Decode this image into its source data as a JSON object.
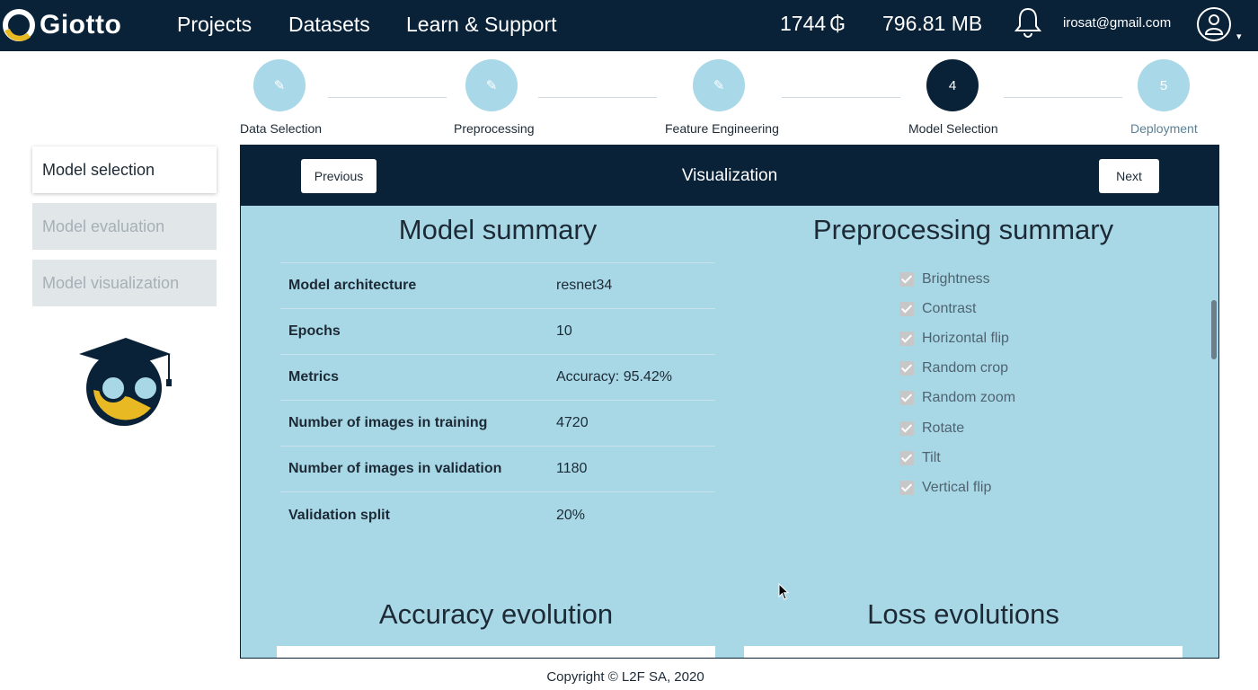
{
  "app": {
    "name": "Giotto",
    "logo_icon": "giotto-ring-icon"
  },
  "nav": {
    "items": [
      {
        "label": "Projects"
      },
      {
        "label": "Datasets"
      },
      {
        "label": "Learn & Support"
      }
    ]
  },
  "account": {
    "credits": "1744",
    "credits_icon": "giotto-coin-icon",
    "credits_symbol": "₲",
    "storage": "796.81 MB",
    "email": "irosat@gmail.com",
    "caret": "▾"
  },
  "stepper": {
    "steps": [
      {
        "label": "Data Selection",
        "marker": "✎",
        "state": "done"
      },
      {
        "label": "Preprocessing",
        "marker": "✎",
        "state": "done"
      },
      {
        "label": "Feature Engineering",
        "marker": "✎",
        "state": "done"
      },
      {
        "label": "Model Selection",
        "marker": "4",
        "state": "active"
      },
      {
        "label": "Deployment",
        "marker": "5",
        "state": "pending"
      }
    ]
  },
  "sidebar": {
    "items": [
      {
        "label": "Model selection",
        "state": "active"
      },
      {
        "label": "Model evaluation",
        "state": "disabled"
      },
      {
        "label": "Model visualization",
        "state": "disabled"
      }
    ],
    "mascot_icon": "graduate-owl-icon"
  },
  "panel": {
    "previous_label": "Previous",
    "title": "Visualization",
    "next_label": "Next"
  },
  "model_summary": {
    "title": "Model summary",
    "rows": [
      {
        "key": "Model architecture",
        "value": "resnet34"
      },
      {
        "key": "Epochs",
        "value": "10"
      },
      {
        "key": "Metrics",
        "value": "Accuracy: 95.42%"
      },
      {
        "key": "Number of images in training",
        "value": "4720"
      },
      {
        "key": "Number of images in validation",
        "value": "1180"
      },
      {
        "key": "Validation split",
        "value": "20%"
      }
    ]
  },
  "preprocessing_summary": {
    "title": "Preprocessing summary",
    "items": [
      {
        "label": "Brightness",
        "checked": true
      },
      {
        "label": "Contrast",
        "checked": true
      },
      {
        "label": "Horizontal flip",
        "checked": true
      },
      {
        "label": "Random crop",
        "checked": true
      },
      {
        "label": "Random zoom",
        "checked": true
      },
      {
        "label": "Rotate",
        "checked": true
      },
      {
        "label": "Tilt",
        "checked": true
      },
      {
        "label": "Vertical flip",
        "checked": true
      }
    ]
  },
  "charts": {
    "accuracy_title": "Accuracy evolution",
    "loss_title": "Loss evolutions"
  },
  "footer": {
    "copyright": "Copyright © L2F SA, 2020"
  },
  "colors": {
    "navy": "#0a2238",
    "panel_blue": "#a8d8e6",
    "step_done": "#a9d8e8",
    "accent_yellow": "#e8b923"
  }
}
